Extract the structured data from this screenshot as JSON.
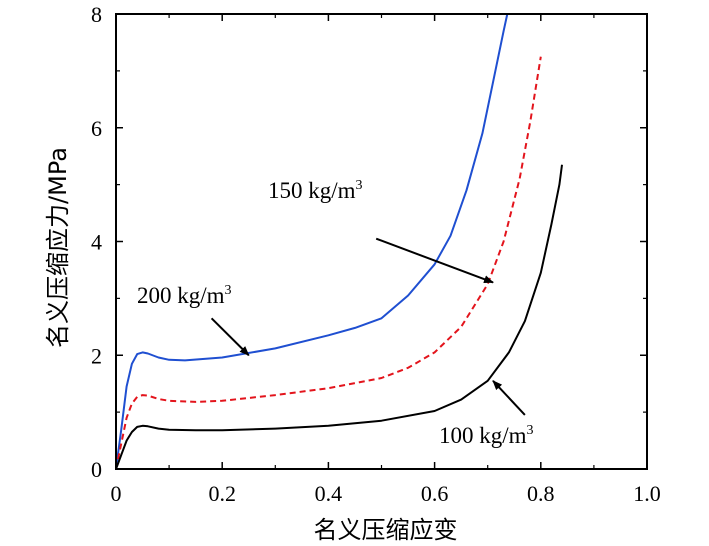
{
  "chart_data": {
    "type": "line",
    "title": "",
    "xlabel": "名义压缩应变",
    "ylabel": "名义压缩应力/MPa",
    "xlim": [
      0,
      1.0
    ],
    "ylim": [
      0,
      8
    ],
    "x_ticks": [
      "0",
      "0.2",
      "0.4",
      "0.6",
      "0.8",
      "1.0"
    ],
    "y_ticks": [
      "0",
      "2",
      "4",
      "6",
      "8"
    ],
    "series": [
      {
        "name": "200 kg/m³",
        "color": "#1f4fd1",
        "style": "solid",
        "x": [
          0,
          0.01,
          0.02,
          0.03,
          0.04,
          0.05,
          0.06,
          0.08,
          0.1,
          0.13,
          0.2,
          0.3,
          0.4,
          0.45,
          0.5,
          0.55,
          0.6,
          0.63,
          0.66,
          0.69,
          0.71,
          0.73,
          0.737
        ],
        "y": [
          0,
          0.7,
          1.45,
          1.85,
          2.02,
          2.05,
          2.03,
          1.96,
          1.92,
          1.91,
          1.96,
          2.12,
          2.35,
          2.48,
          2.65,
          3.05,
          3.6,
          4.1,
          4.9,
          5.9,
          6.8,
          7.7,
          8.0
        ]
      },
      {
        "name": "150 kg/m³",
        "color": "#e3141c",
        "style": "dashed",
        "x": [
          0,
          0.01,
          0.02,
          0.03,
          0.04,
          0.05,
          0.06,
          0.08,
          0.1,
          0.15,
          0.2,
          0.3,
          0.4,
          0.5,
          0.55,
          0.6,
          0.65,
          0.7,
          0.73,
          0.76,
          0.78,
          0.8
        ],
        "y": [
          0,
          0.45,
          0.9,
          1.15,
          1.27,
          1.3,
          1.29,
          1.23,
          1.2,
          1.18,
          1.2,
          1.3,
          1.42,
          1.6,
          1.78,
          2.05,
          2.5,
          3.25,
          4.0,
          5.1,
          6.1,
          7.25
        ]
      },
      {
        "name": "100 kg/m³",
        "color": "#000000",
        "style": "solid",
        "x": [
          0,
          0.01,
          0.02,
          0.03,
          0.04,
          0.05,
          0.06,
          0.08,
          0.1,
          0.15,
          0.2,
          0.3,
          0.4,
          0.5,
          0.6,
          0.65,
          0.7,
          0.74,
          0.77,
          0.8,
          0.82,
          0.835,
          0.84
        ],
        "y": [
          0,
          0.25,
          0.5,
          0.65,
          0.74,
          0.76,
          0.75,
          0.71,
          0.69,
          0.68,
          0.68,
          0.71,
          0.76,
          0.85,
          1.02,
          1.22,
          1.55,
          2.05,
          2.6,
          3.45,
          4.3,
          5.0,
          5.35
        ]
      }
    ],
    "annotations": [
      {
        "text": "200 kg/m",
        "sup": "3",
        "from": [
          0.18,
          2.65
        ],
        "to": [
          0.25,
          2.0
        ]
      },
      {
        "text": "150 kg/m",
        "sup": "3",
        "from": [
          0.49,
          4.05
        ],
        "to": [
          0.71,
          3.28
        ]
      },
      {
        "text": "100 kg/m",
        "sup": "3",
        "from": [
          0.77,
          0.95
        ],
        "to": [
          0.71,
          1.55
        ]
      }
    ]
  }
}
